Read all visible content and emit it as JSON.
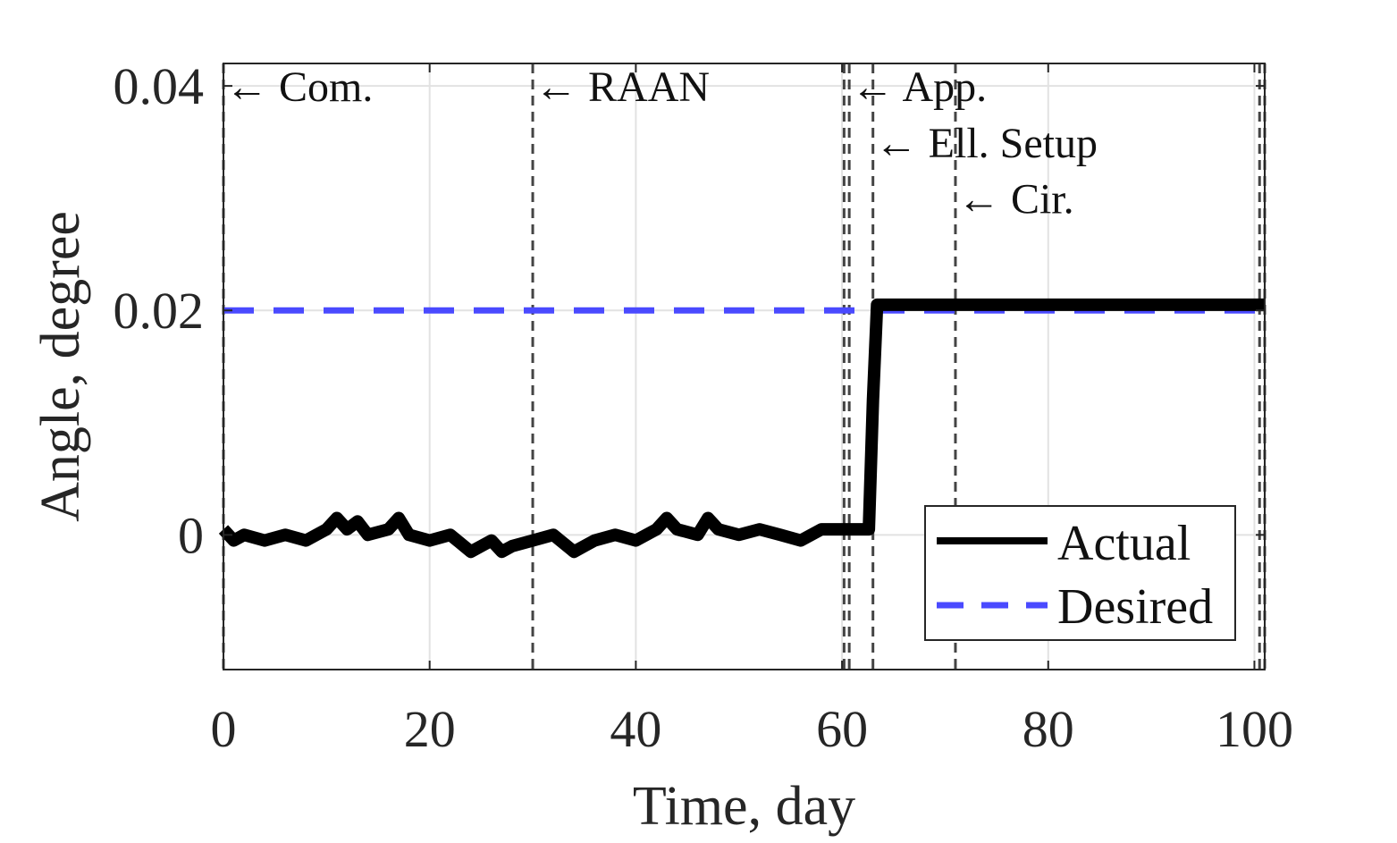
{
  "chart_data": {
    "type": "line",
    "title": "",
    "xlabel": "Time, day",
    "ylabel": "Angle, degree",
    "xlim": [
      0,
      101
    ],
    "ylim": [
      -0.012,
      0.042
    ],
    "xticks": [
      0,
      20,
      40,
      60,
      80,
      100
    ],
    "xtick_labels": [
      "0",
      "20",
      "40",
      "60",
      "80",
      "100"
    ],
    "yticks": [
      0,
      0.02,
      0.04
    ],
    "ytick_labels": [
      "0",
      "0.02",
      "0.04"
    ],
    "grid": true,
    "legend_position": "bottom-right",
    "series": [
      {
        "name": "Actual",
        "color": "#000000",
        "style": "solid",
        "x": [
          0,
          1,
          2,
          4,
          6,
          8,
          10,
          11,
          12,
          13,
          14,
          16,
          17,
          18,
          20,
          22,
          24,
          25,
          26,
          27,
          28,
          30,
          32,
          34,
          35,
          36,
          38,
          40,
          42,
          43,
          44,
          46,
          47,
          48,
          50,
          52,
          54,
          56,
          58,
          60,
          61,
          62,
          62.6,
          63,
          63.4,
          64,
          66,
          68,
          70,
          72,
          75,
          80,
          85,
          90,
          95,
          100,
          101
        ],
        "y": [
          0.0005,
          -0.0005,
          0.0,
          -0.0005,
          0.0,
          -0.0005,
          0.0005,
          0.0015,
          0.0005,
          0.0012,
          0.0,
          0.0005,
          0.0015,
          0.0,
          -0.0005,
          0.0,
          -0.0015,
          -0.001,
          -0.0005,
          -0.0015,
          -0.001,
          -0.0005,
          0.0,
          -0.0015,
          -0.001,
          -0.0005,
          0.0,
          -0.0005,
          0.0005,
          0.0015,
          0.0005,
          0.0,
          0.0015,
          0.0005,
          0.0,
          0.0005,
          0.0,
          -0.0005,
          0.0005,
          0.0005,
          0.0005,
          0.0005,
          0.0005,
          0.012,
          0.0205,
          0.0205,
          0.0205,
          0.0205,
          0.0205,
          0.0205,
          0.0205,
          0.0205,
          0.0205,
          0.0205,
          0.0205,
          0.0205,
          0.0205
        ]
      },
      {
        "name": "Desired",
        "color": "#4a4aff",
        "style": "dashed",
        "x": [
          0,
          101
        ],
        "y": [
          0.02,
          0.02
        ]
      }
    ],
    "vlines": [
      0,
      30,
      60.2,
      60.7,
      63,
      71,
      100.5,
      101
    ],
    "annotations": [
      {
        "text": "← Com.",
        "x": 0,
        "y": 0.04
      },
      {
        "text": "← RAAN",
        "x": 30,
        "y": 0.04
      },
      {
        "text": "← App.",
        "x": 60.7,
        "y": 0.04
      },
      {
        "text": "← Ell. Setup",
        "x": 63,
        "y": 0.035
      },
      {
        "text": "← Cir.",
        "x": 71,
        "y": 0.03
      }
    ]
  }
}
